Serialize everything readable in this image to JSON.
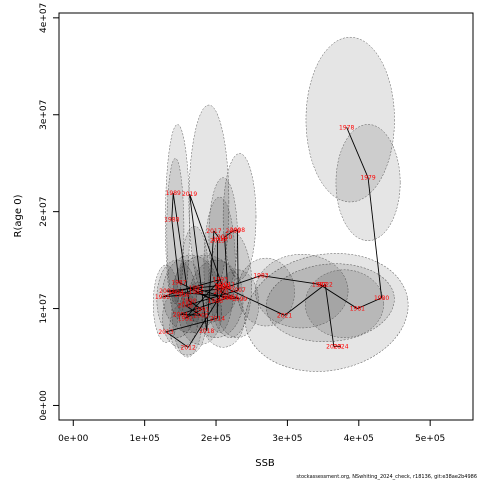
{
  "chart_data": {
    "type": "scatter",
    "title": "",
    "xlabel": "SSB",
    "ylabel": "R(age 0)",
    "xlim": [
      -20000,
      560000
    ],
    "ylim": [
      -1500000,
      40500000
    ],
    "xticks": [
      0,
      100000,
      200000,
      300000,
      400000,
      500000
    ],
    "xtick_labels": [
      "0e+00",
      "1e+05",
      "2e+05",
      "3e+05",
      "4e+05",
      "5e+05"
    ],
    "yticks": [
      0,
      10000000,
      20000000,
      30000000,
      40000000
    ],
    "ytick_labels": [
      "0e+00",
      "1e+07",
      "2e+07",
      "3e+07",
      "4e+07"
    ],
    "footnote": "stockassessment.org, NSwhiting_2024_check, r18136, git:e38ae2b4986",
    "colors": {
      "year_label": "#ff0000",
      "path": "#000000",
      "ellipse_fill": "#000000",
      "ellipse_border": "#555555"
    },
    "points": [
      {
        "year": "1978",
        "x": 383000,
        "y": 28700000
      },
      {
        "year": "1979",
        "x": 413000,
        "y": 23500000
      },
      {
        "year": "1980",
        "x": 432000,
        "y": 11100000
      },
      {
        "year": "1981",
        "x": 398000,
        "y": 10000000
      },
      {
        "year": "1982",
        "x": 345000,
        "y": 12500000
      },
      {
        "year": "1983",
        "x": 263000,
        "y": 13400000
      },
      {
        "year": "1984",
        "x": 211000,
        "y": 12100000
      },
      {
        "year": "1985",
        "x": 172000,
        "y": 11700000
      },
      {
        "year": "1986",
        "x": 199000,
        "y": 10800000
      },
      {
        "year": "1987",
        "x": 148000,
        "y": 12700000
      },
      {
        "year": "1988",
        "x": 138000,
        "y": 19200000
      },
      {
        "year": "1989",
        "x": 140000,
        "y": 21900000
      },
      {
        "year": "1990",
        "x": 162000,
        "y": 10800000
      },
      {
        "year": "1991",
        "x": 180000,
        "y": 9900000
      },
      {
        "year": "1992",
        "x": 157000,
        "y": 9000000
      },
      {
        "year": "1993",
        "x": 206000,
        "y": 13000000
      },
      {
        "year": "1994",
        "x": 144000,
        "y": 11700000
      },
      {
        "year": "1995",
        "x": 125000,
        "y": 11200000
      },
      {
        "year": "1996",
        "x": 152000,
        "y": 11400000
      },
      {
        "year": "1997",
        "x": 172000,
        "y": 12100000
      },
      {
        "year": "1998",
        "x": 213000,
        "y": 11100000
      },
      {
        "year": "1999",
        "x": 233000,
        "y": 11000000
      },
      {
        "year": "2000",
        "x": 207000,
        "y": 11700000
      },
      {
        "year": "2001",
        "x": 208000,
        "y": 12400000
      },
      {
        "year": "2002",
        "x": 131000,
        "y": 11800000
      },
      {
        "year": "2003",
        "x": 220000,
        "y": 11200000
      },
      {
        "year": "2004",
        "x": 150000,
        "y": 9400000
      },
      {
        "year": "2005",
        "x": 179000,
        "y": 9300000
      },
      {
        "year": "2006",
        "x": 157000,
        "y": 10300000
      },
      {
        "year": "2007",
        "x": 231000,
        "y": 11900000
      },
      {
        "year": "2008",
        "x": 230000,
        "y": 18100000
      },
      {
        "year": "2009",
        "x": 224000,
        "y": 18000000
      },
      {
        "year": "2010",
        "x": 212000,
        "y": 17400000
      },
      {
        "year": "2011",
        "x": 216000,
        "y": 12500000
      },
      {
        "year": "2012",
        "x": 161000,
        "y": 6000000
      },
      {
        "year": "2013",
        "x": 130000,
        "y": 7600000
      },
      {
        "year": "2014",
        "x": 202000,
        "y": 9000000
      },
      {
        "year": "2015",
        "x": 202000,
        "y": 17000000
      },
      {
        "year": "2016",
        "x": 205000,
        "y": 17200000
      },
      {
        "year": "2017",
        "x": 197000,
        "y": 18000000
      },
      {
        "year": "2018",
        "x": 187000,
        "y": 7700000
      },
      {
        "year": "2019",
        "x": 163000,
        "y": 21800000
      },
      {
        "year": "2020",
        "x": 209000,
        "y": 12300000
      },
      {
        "year": "2021",
        "x": 296000,
        "y": 9300000
      },
      {
        "year": "2022",
        "x": 353000,
        "y": 12500000
      },
      {
        "year": "2023",
        "x": 365000,
        "y": 6100000
      },
      {
        "year": "2024",
        "x": 375000,
        "y": 6100000
      }
    ],
    "ellipses": [
      {
        "cx": 388000,
        "cy": 29500000,
        "rx": 62000,
        "ry": 8500000,
        "angle": 0
      },
      {
        "cx": 413000,
        "cy": 23000000,
        "rx": 45000,
        "ry": 6000000,
        "angle": 0
      },
      {
        "cx": 355000,
        "cy": 9600000,
        "rx": 115000,
        "ry": 6000000,
        "angle": -10
      },
      {
        "cx": 360000,
        "cy": 10600000,
        "rx": 90000,
        "ry": 4000000,
        "angle": -5
      },
      {
        "cx": 320000,
        "cy": 11800000,
        "rx": 65000,
        "ry": 3800000,
        "angle": 0
      },
      {
        "cx": 380000,
        "cy": 10500000,
        "rx": 55000,
        "ry": 3500000,
        "angle": 0
      },
      {
        "cx": 270000,
        "cy": 11700000,
        "rx": 40000,
        "ry": 3500000,
        "angle": 0
      },
      {
        "cx": 190000,
        "cy": 21000000,
        "rx": 28000,
        "ry": 10000000,
        "angle": 0
      },
      {
        "cx": 146000,
        "cy": 19000000,
        "rx": 17000,
        "ry": 10000000,
        "angle": 0
      },
      {
        "cx": 233000,
        "cy": 19500000,
        "rx": 23000,
        "ry": 6500000,
        "angle": 0
      },
      {
        "cx": 143000,
        "cy": 18000000,
        "rx": 12000,
        "ry": 7500000,
        "angle": 0
      },
      {
        "cx": 210000,
        "cy": 17500000,
        "rx": 20000,
        "ry": 6000000,
        "angle": 0
      },
      {
        "cx": 165000,
        "cy": 11500000,
        "rx": 40000,
        "ry": 4000000,
        "angle": 0
      },
      {
        "cx": 200000,
        "cy": 11000000,
        "rx": 38000,
        "ry": 4000000,
        "angle": 0
      },
      {
        "cx": 145000,
        "cy": 11000000,
        "rx": 28000,
        "ry": 4000000,
        "angle": 0
      },
      {
        "cx": 178000,
        "cy": 9500000,
        "rx": 30000,
        "ry": 3200000,
        "angle": 0
      },
      {
        "cx": 150000,
        "cy": 9000000,
        "rx": 25000,
        "ry": 3000000,
        "angle": 0
      },
      {
        "cx": 220000,
        "cy": 12500000,
        "rx": 30000,
        "ry": 5500000,
        "angle": 0
      },
      {
        "cx": 160000,
        "cy": 8000000,
        "rx": 25000,
        "ry": 2800000,
        "angle": 0
      },
      {
        "cx": 130000,
        "cy": 10500000,
        "rx": 18000,
        "ry": 4000000,
        "angle": 0
      },
      {
        "cx": 205000,
        "cy": 14500000,
        "rx": 22000,
        "ry": 7000000,
        "angle": 0
      },
      {
        "cx": 185000,
        "cy": 12000000,
        "rx": 45000,
        "ry": 3500000,
        "angle": 0
      },
      {
        "cx": 230000,
        "cy": 10500000,
        "rx": 30000,
        "ry": 3500000,
        "angle": 0
      },
      {
        "cx": 160000,
        "cy": 10000000,
        "rx": 22000,
        "ry": 5000000,
        "angle": 0
      },
      {
        "cx": 210000,
        "cy": 9000000,
        "rx": 30000,
        "ry": 3000000,
        "angle": 0
      },
      {
        "cx": 170000,
        "cy": 13000000,
        "rx": 20000,
        "ry": 5500000,
        "angle": 0
      }
    ]
  }
}
